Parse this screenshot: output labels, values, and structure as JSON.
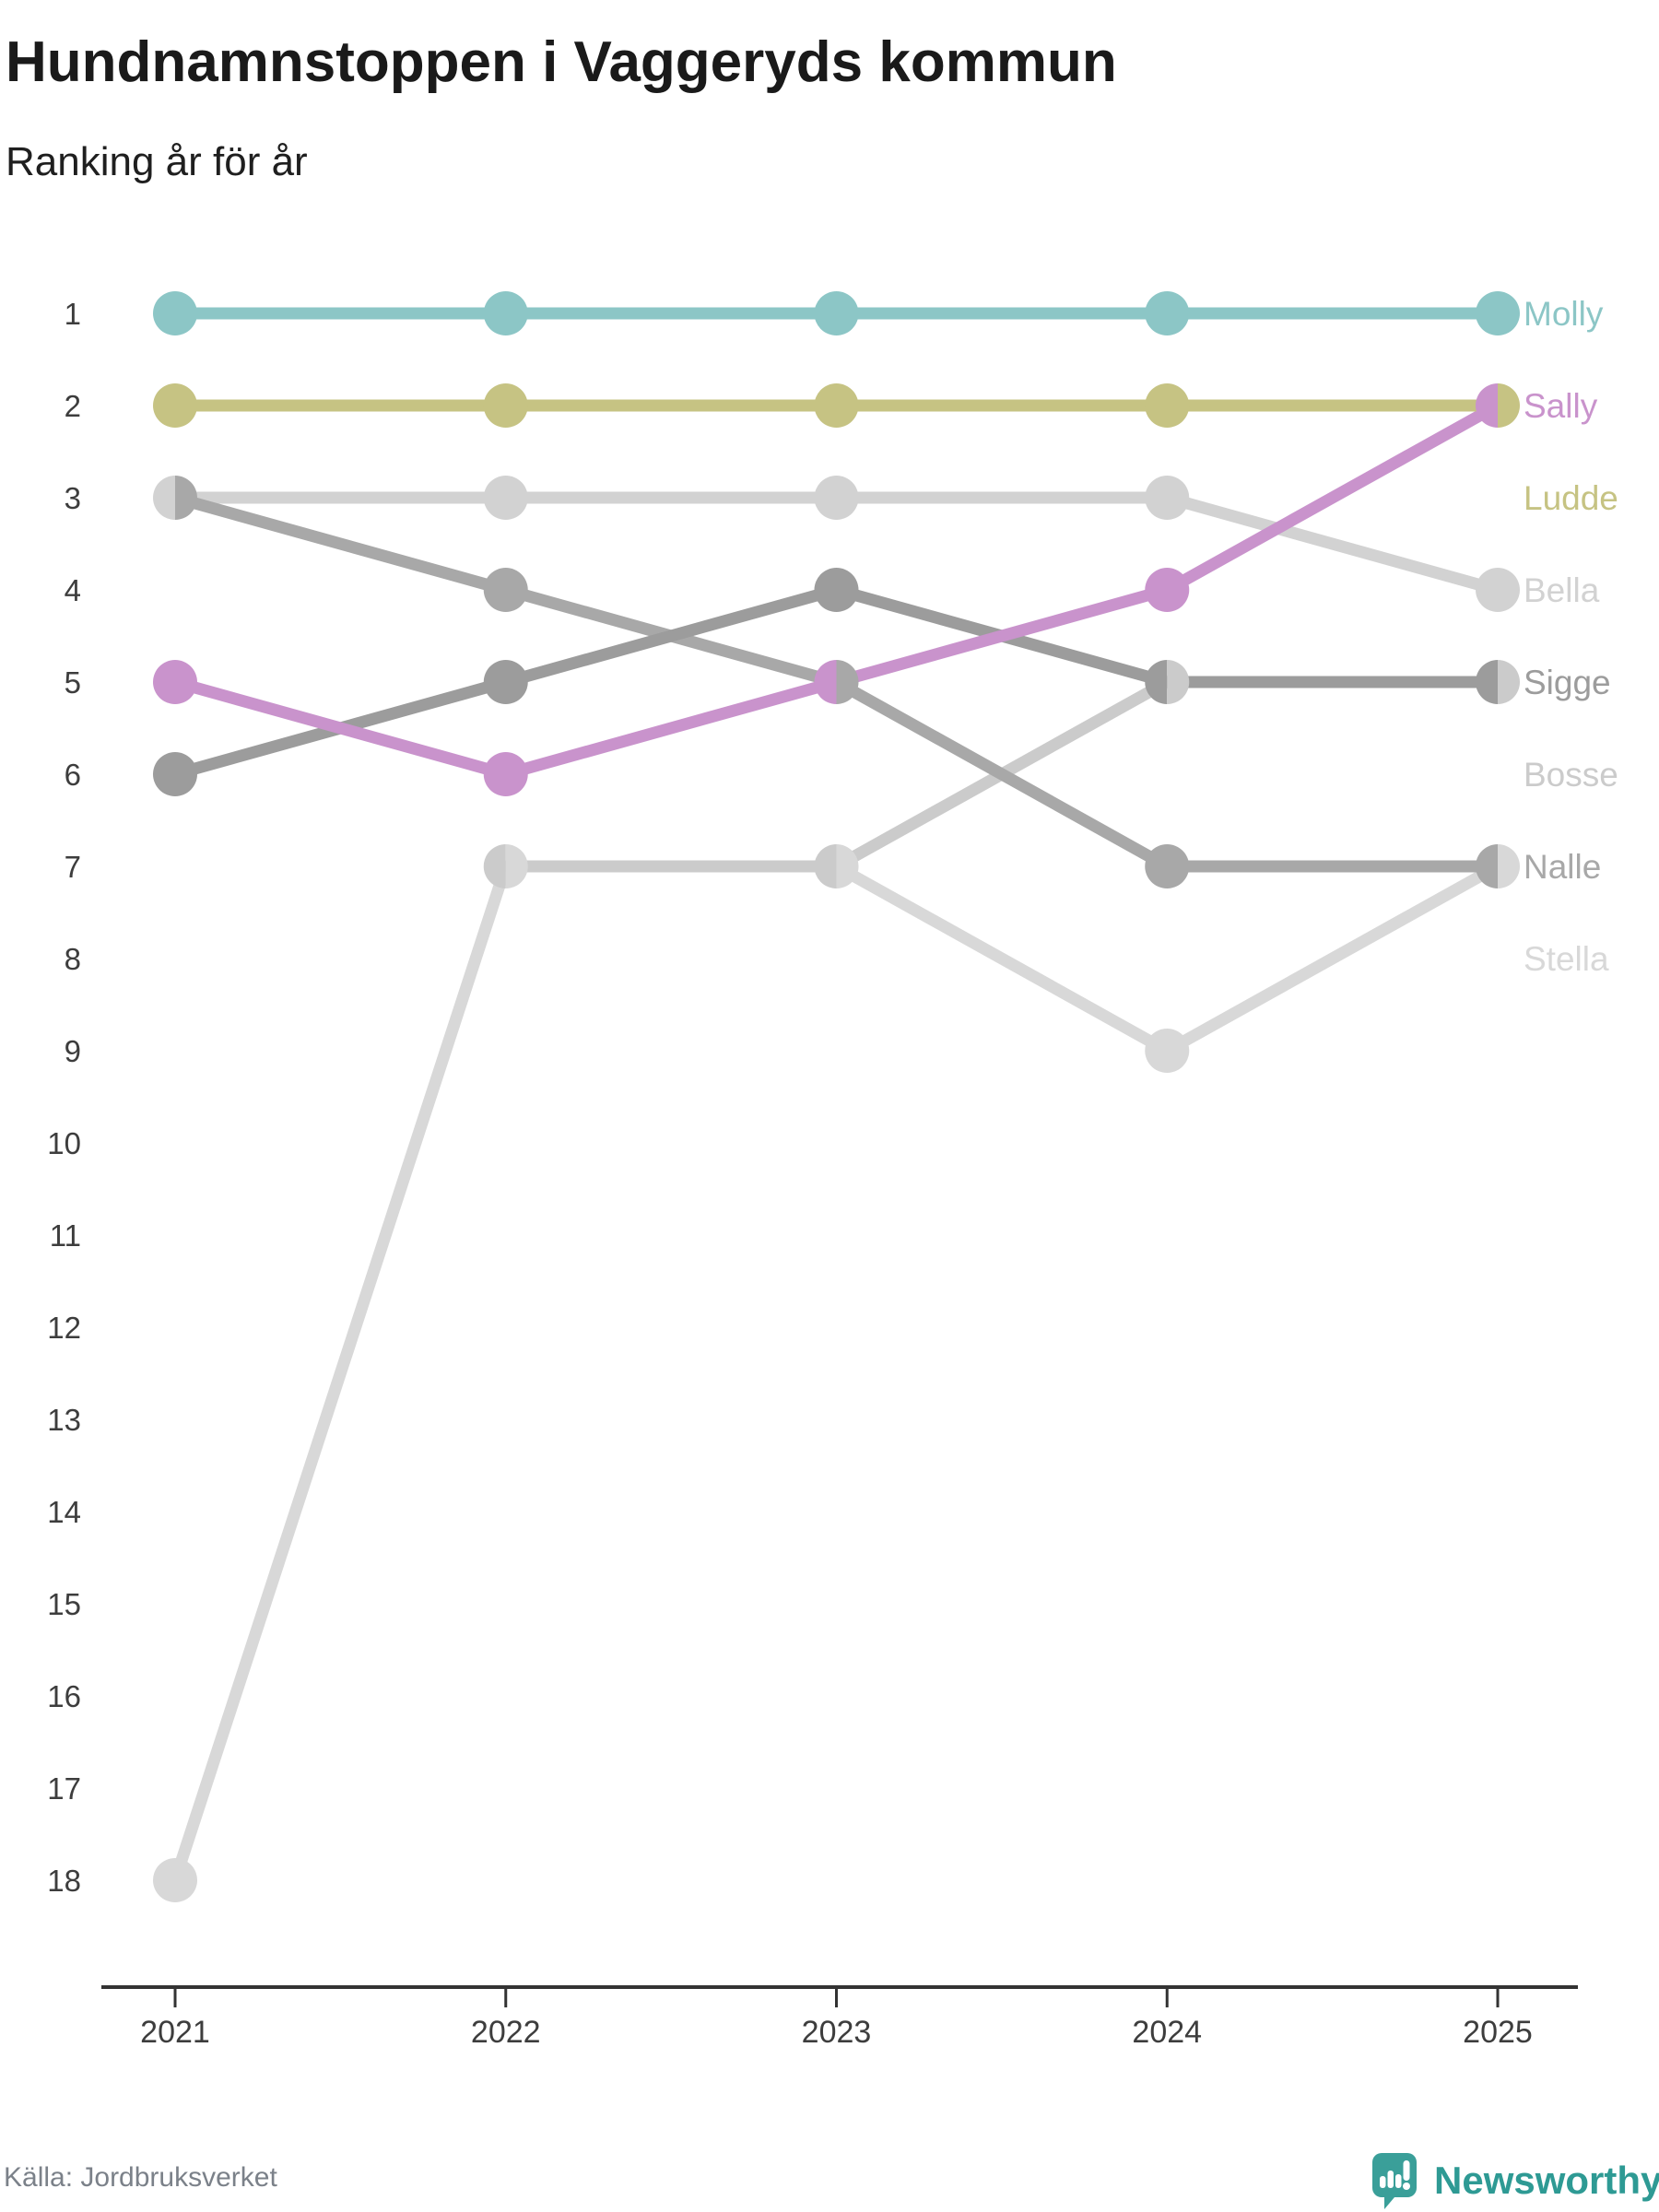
{
  "header": {
    "title": "Hundnamnstoppen i Vaggeryds kommun",
    "subtitle": "Ranking år för år"
  },
  "footer": {
    "source": "Källa: Jordbruksverket",
    "brand": "Newsworthy",
    "brand_color": "#2e9a94"
  },
  "chart_data": {
    "type": "line",
    "variant": "bump-ranking-chart",
    "title": "Hundnamnstoppen i Vaggeryds kommun",
    "subtitle": "Ranking år för år",
    "x": [
      "2021",
      "2022",
      "2023",
      "2024",
      "2025"
    ],
    "y_axis": {
      "top_rank": 1,
      "bottom_rank": 18,
      "tick_step": 1,
      "direction": "1 is best, listed top"
    },
    "grid": false,
    "legend_position": "right-of-last-point",
    "series": [
      {
        "name": "Stella",
        "color": "#d8d8d8",
        "ranks": [
          18,
          7,
          7,
          9,
          7
        ],
        "label_row": 8
      },
      {
        "name": "Bella",
        "color": "#d2d2d2",
        "ranks": [
          3,
          3,
          3,
          3,
          4
        ],
        "label_row": 4
      },
      {
        "name": "Bosse",
        "color": "#cbcbcb",
        "ranks": [
          null,
          7,
          7,
          5,
          5
        ],
        "label_row": 6
      },
      {
        "name": "Nalle",
        "color": "#a8a8a8",
        "ranks": [
          3,
          4,
          5,
          7,
          7
        ],
        "label_row": 7
      },
      {
        "name": "Sigge",
        "color": "#9c9c9c",
        "ranks": [
          6,
          5,
          4,
          5,
          5
        ],
        "label_row": 5
      },
      {
        "name": "Sally",
        "color": "#c993cc",
        "ranks": [
          5,
          6,
          5,
          4,
          2
        ],
        "label_row": 2
      },
      {
        "name": "Ludde",
        "color": "#c6c383",
        "ranks": [
          2,
          2,
          2,
          2,
          2
        ],
        "label_row": 3
      },
      {
        "name": "Molly",
        "color": "#8cc6c6",
        "ranks": [
          1,
          1,
          1,
          1,
          1
        ],
        "label_row": 1
      }
    ],
    "ties": [
      {
        "year": "2021",
        "rank": 3,
        "left": "Bella",
        "right": "Nalle"
      },
      {
        "year": "2022",
        "rank": 7,
        "left": "Bosse",
        "right": "Stella"
      },
      {
        "year": "2023",
        "rank": 7,
        "left": "Bosse",
        "right": "Stella"
      },
      {
        "year": "2023",
        "rank": 5,
        "left": "Sally",
        "right": "Nalle"
      },
      {
        "year": "2024",
        "rank": 5,
        "left": "Sigge",
        "right": "Bosse"
      },
      {
        "year": "2025",
        "rank": 2,
        "left": "Sally",
        "right": "Ludde"
      },
      {
        "year": "2025",
        "rank": 5,
        "left": "Sigge",
        "right": "Bosse"
      },
      {
        "year": "2025",
        "rank": 7,
        "left": "Nalle",
        "right": "Stella"
      }
    ]
  }
}
